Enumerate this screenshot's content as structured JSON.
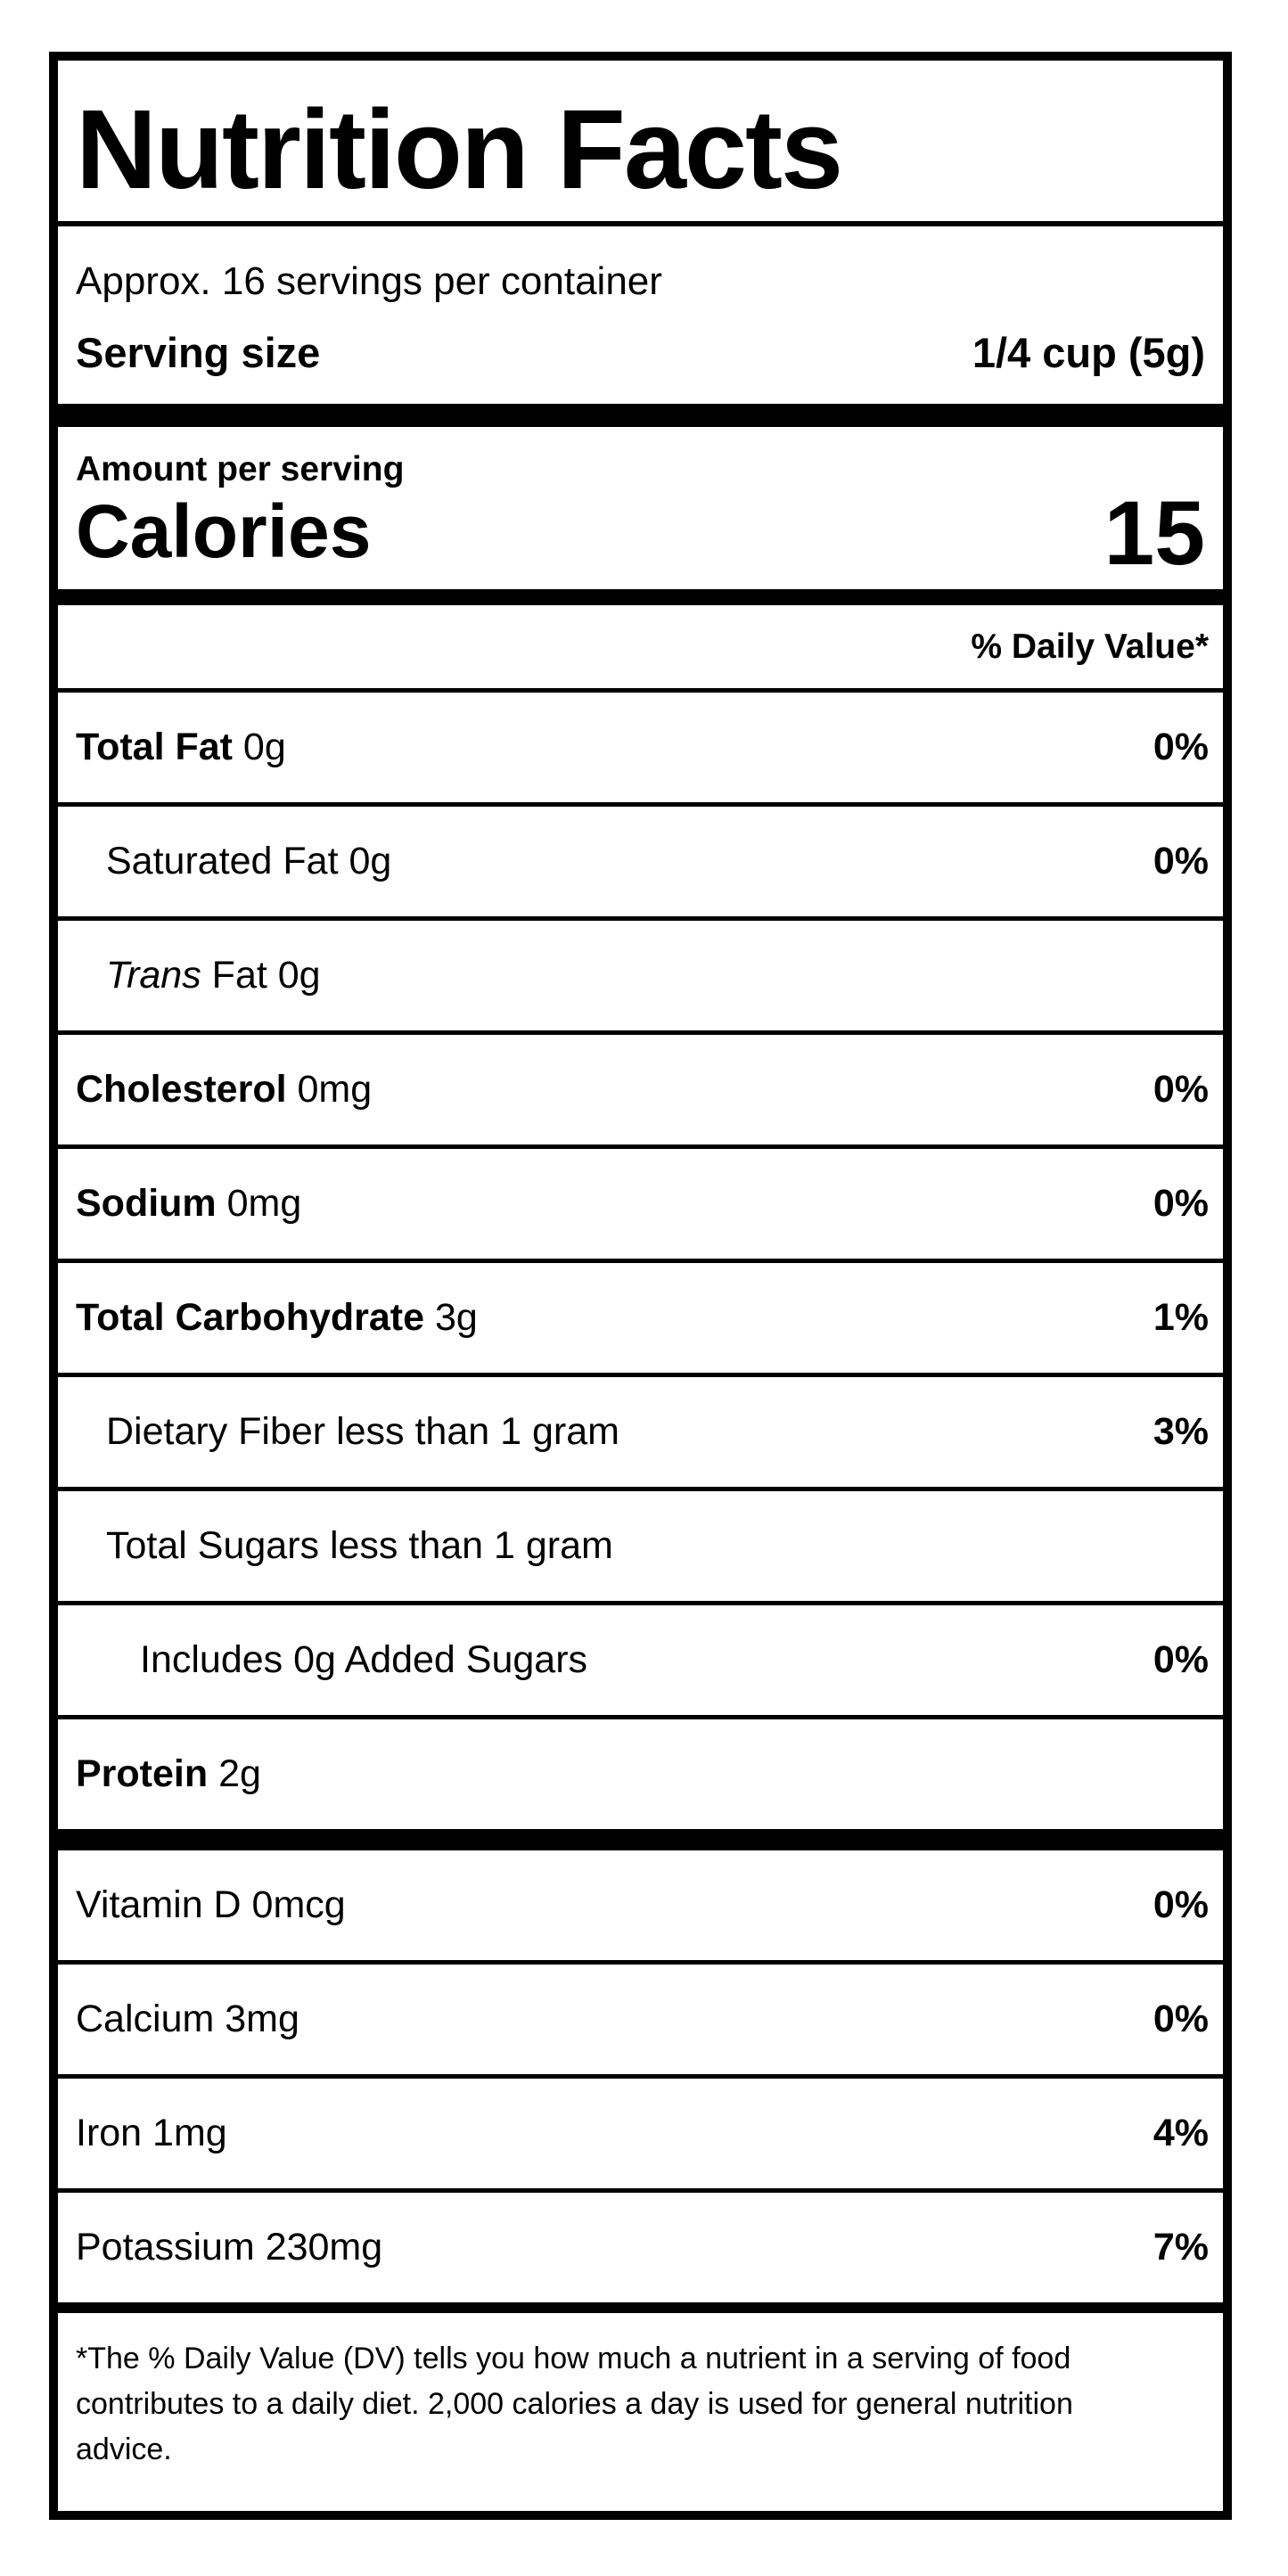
{
  "label": {
    "title": "Nutrition Facts",
    "servings_per_container": "Approx. 16 servings per container",
    "serving_size_label": "Serving size",
    "serving_size_value": "1/4 cup (5g)",
    "amount_per_serving": "Amount per serving",
    "calories_label": "Calories",
    "calories_value": "15",
    "daily_value_header": "% Daily Value*",
    "rows": [
      {
        "bold": "Total Fat",
        "italic": "",
        "regular": " 0g",
        "percent": "0%"
      },
      {
        "bold": "",
        "italic": "",
        "regular": "Saturated Fat 0g",
        "percent": "0%"
      },
      {
        "bold": "",
        "italic": "Trans",
        "regular": " Fat 0g",
        "percent": ""
      },
      {
        "bold": "Cholesterol",
        "italic": "",
        "regular": " 0mg",
        "percent": "0%"
      },
      {
        "bold": "Sodium",
        "italic": "",
        "regular": " 0mg",
        "percent": "0%"
      },
      {
        "bold": "Total Carbohydrate",
        "italic": "",
        "regular": " 3g",
        "percent": "1%"
      },
      {
        "bold": "",
        "italic": "",
        "regular": "Dietary Fiber less than 1 gram",
        "percent": "3%"
      },
      {
        "bold": "",
        "italic": "",
        "regular": "Total Sugars less than 1 gram",
        "percent": ""
      },
      {
        "bold": "",
        "italic": "",
        "regular": "Includes 0g Added Sugars",
        "percent": "0%"
      },
      {
        "bold": "Protein",
        "italic": "",
        "regular": " 2g",
        "percent": ""
      }
    ],
    "micronutrients": [
      {
        "regular": "Vitamin D 0mcg",
        "percent": "0%"
      },
      {
        "regular": "Calcium 3mg",
        "percent": "0%"
      },
      {
        "regular": "Iron 1mg",
        "percent": "4%"
      },
      {
        "regular": "Potassium 230mg",
        "percent": "7%"
      }
    ],
    "footnote": "*The % Daily Value (DV) tells you how much a nutrient in a serving of food contributes to a daily diet. 2,000 calories a day is used for general nutrition advice.",
    "colors": {
      "text": "#000000",
      "background": "#ffffff",
      "rule": "#000000"
    }
  }
}
